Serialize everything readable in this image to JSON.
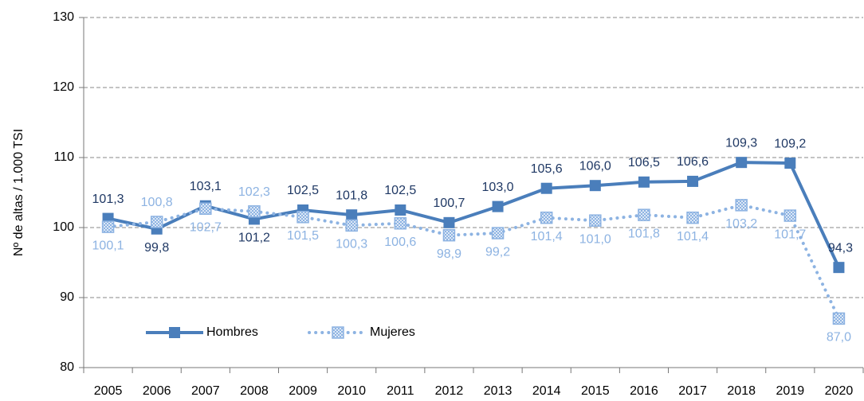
{
  "chart_data": {
    "type": "line",
    "y_label": "Nº de altas / 1.000 TSI",
    "categories": [
      "2005",
      "2006",
      "2007",
      "2008",
      "2009",
      "2010",
      "2011",
      "2012",
      "2013",
      "2014",
      "2015",
      "2016",
      "2017",
      "2018",
      "2019",
      "2020"
    ],
    "series": [
      {
        "name": "Hombres",
        "color": "#4a7ebb",
        "label_color": "#1f3864",
        "line_style": "solid",
        "values": [
          101.3,
          99.8,
          103.1,
          101.2,
          102.5,
          101.8,
          102.5,
          100.7,
          103.0,
          105.6,
          106.0,
          106.5,
          106.6,
          109.3,
          109.2,
          94.3
        ],
        "value_labels": [
          "101,3",
          "99,8",
          "103,1",
          "101,2",
          "102,5",
          "101,8",
          "102,5",
          "100,7",
          "103,0",
          "105,6",
          "106,0",
          "106,5",
          "106,6",
          "109,3",
          "109,2",
          "94,3"
        ]
      },
      {
        "name": "Mujeres",
        "color": "#8db3e2",
        "label_color": "#8db3e2",
        "line_style": "dotted",
        "values": [
          100.1,
          100.8,
          102.7,
          102.3,
          101.5,
          100.3,
          100.6,
          98.9,
          99.2,
          101.4,
          101.0,
          101.8,
          101.4,
          103.2,
          101.7,
          87.0
        ],
        "value_labels": [
          "100,1",
          "100,8",
          "102,7",
          "102,3",
          "101,5",
          "100,3",
          "100,6",
          "98,9",
          "99,2",
          "101,4",
          "101,0",
          "101,8",
          "101,4",
          "103,2",
          "101,7",
          "87,0"
        ]
      }
    ],
    "ylim": [
      80,
      130
    ],
    "yticks": [
      80,
      90,
      100,
      110,
      120,
      130
    ],
    "grid": true,
    "legend": "lower left"
  }
}
